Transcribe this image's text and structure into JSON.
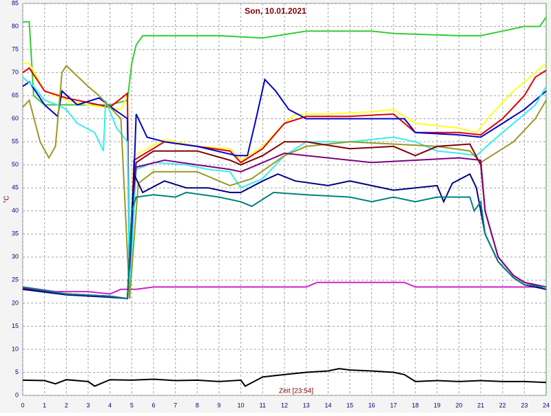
{
  "chart_data": {
    "type": "line",
    "title": "Son, 10.01.2021",
    "x_label": "Zeit [23:54]",
    "y_label": "°C",
    "xlim": [
      0,
      24
    ],
    "xticks": [
      0,
      1,
      2,
      3,
      4,
      5,
      6,
      7,
      8,
      9,
      10,
      11,
      12,
      13,
      14,
      15,
      16,
      17,
      18,
      19,
      20,
      21,
      22,
      23,
      24
    ],
    "ylim": [
      0,
      85
    ],
    "yticks": [
      0,
      5,
      10,
      15,
      20,
      25,
      30,
      35,
      40,
      45,
      50,
      55,
      60,
      65,
      70,
      75,
      80,
      85
    ],
    "grid": true,
    "series": [
      {
        "color": "#33cc33",
        "x": [
          0,
          0.3,
          0.5,
          1,
          2,
          3,
          4,
          4.8,
          5,
          5.2,
          5.5,
          9,
          11,
          13,
          16,
          17,
          20,
          21,
          22,
          23,
          23.7,
          24
        ],
        "values": [
          81,
          81,
          65,
          63,
          63,
          63,
          63,
          64,
          72,
          76,
          78,
          78,
          77.5,
          79,
          79,
          78.5,
          78,
          78,
          79,
          80,
          80,
          82
        ]
      },
      {
        "color": "#cc22cc",
        "x": [
          0,
          1.5,
          3,
          4,
          4.5,
          5.2,
          6,
          13,
          13.5,
          17.5,
          18,
          24
        ],
        "values": [
          23.5,
          22.5,
          22.5,
          22,
          23,
          23,
          23.5,
          23.5,
          24.5,
          24.5,
          23.5,
          23.5
        ]
      },
      {
        "color": "#000000",
        "x": [
          0,
          1,
          1.5,
          2,
          3,
          3.3,
          4,
          5,
          6,
          7,
          8,
          9,
          10,
          10.2,
          11,
          12,
          13,
          14,
          14.5,
          15,
          16,
          17,
          17.5,
          18,
          19,
          20,
          21,
          22,
          23,
          24
        ],
        "values": [
          3.3,
          3.2,
          2.5,
          3.4,
          3,
          2,
          3.4,
          3.3,
          3.5,
          3.2,
          3.3,
          3,
          3.3,
          2,
          4,
          4.5,
          5,
          5.3,
          5.8,
          5.5,
          5.3,
          5,
          4.5,
          3,
          3.2,
          3,
          3.2,
          3,
          3,
          2.8
        ]
      },
      {
        "color": "#ffff22",
        "x": [
          0,
          0.3,
          1,
          2,
          3,
          4.5,
          4.8,
          4.9,
          5.1,
          6.5,
          8,
          9.5,
          10,
          11,
          12,
          12.5,
          14,
          16,
          17,
          18,
          19,
          20,
          20.8,
          21.5,
          22.5,
          23.5,
          24
        ],
        "values": [
          72,
          72,
          66,
          64,
          63,
          62,
          65,
          22,
          52,
          55.5,
          54,
          53.5,
          51,
          54,
          59,
          61,
          61,
          61.5,
          62,
          59,
          58.5,
          58,
          57,
          61,
          66,
          70,
          72
        ]
      },
      {
        "color": "#dd0000",
        "x": [
          0,
          0.3,
          1,
          2,
          3,
          4,
          4.8,
          4.9,
          5.1,
          6.5,
          8,
          9.5,
          10,
          11,
          12,
          13,
          15,
          17,
          18,
          19,
          20,
          21,
          22,
          23,
          23.5,
          24
        ],
        "values": [
          70,
          71,
          66,
          64.5,
          63.5,
          62.5,
          65.5,
          22,
          51,
          55,
          54,
          53,
          50.5,
          53.5,
          59,
          60.5,
          60.5,
          61,
          57,
          57,
          57,
          56.5,
          60,
          65,
          69,
          70.5
        ]
      },
      {
        "color": "#0000cc",
        "x": [
          0,
          0.3,
          1,
          1.6,
          1.8,
          2.5,
          3.5,
          4.2,
          4.8,
          4.9,
          5.2,
          5.7,
          6.5,
          8,
          9.8,
          10.3,
          10.7,
          11.1,
          11.6,
          12.2,
          13,
          15,
          17.5,
          18,
          20,
          21,
          22,
          23,
          24
        ],
        "values": [
          67,
          68,
          63,
          60.5,
          66,
          63,
          64.5,
          62,
          60,
          21,
          61,
          56,
          55,
          54,
          52,
          52,
          60,
          68.5,
          66,
          62,
          60,
          60,
          60,
          57,
          56.5,
          56,
          59,
          62,
          66
        ]
      },
      {
        "color": "#33eeee",
        "x": [
          0,
          0.5,
          1,
          1.6,
          2,
          2.5,
          3.3,
          3.7,
          3.8,
          4.3,
          4.8,
          4.9,
          5.2,
          6,
          7.5,
          8.5,
          9.5,
          10,
          11,
          12,
          13,
          15,
          17,
          18,
          19,
          20,
          20.8,
          21.5,
          22.5,
          23.5,
          24
        ],
        "values": [
          69,
          67,
          64,
          63,
          62,
          59,
          57,
          53,
          64,
          58,
          55,
          22,
          49,
          50.5,
          50,
          49,
          48.5,
          45,
          47,
          52,
          55,
          55,
          56,
          55,
          53,
          52.5,
          52,
          55,
          59,
          63,
          67
        ]
      },
      {
        "color": "#999922",
        "x": [
          0,
          0.3,
          0.8,
          1.2,
          1.5,
          1.8,
          2,
          3,
          3.5,
          4.5,
          4.9,
          5.3,
          6,
          8,
          9.5,
          10.5,
          12,
          13,
          15,
          17,
          19,
          20.5,
          21,
          21.5,
          22.5,
          23.5,
          24
        ],
        "values": [
          62.5,
          64,
          55,
          51.5,
          54,
          70,
          71.5,
          67,
          65,
          60,
          21,
          46,
          48.5,
          48.5,
          45.5,
          47,
          52,
          54,
          55,
          54.5,
          54,
          53,
          50.5,
          52,
          55,
          60,
          64
        ]
      },
      {
        "color": "#800000",
        "x": [
          0,
          2,
          4,
          4.8,
          5,
          5.2,
          6,
          8,
          9.5,
          10,
          11,
          12,
          13,
          15,
          17,
          18,
          19,
          20.5,
          21,
          21.2,
          21.8,
          22.5,
          23,
          24
        ],
        "values": [
          23,
          22,
          21.5,
          21,
          40,
          50.5,
          53,
          53,
          51,
          50,
          52,
          55,
          55,
          53.5,
          54,
          52,
          54,
          54.5,
          50,
          40,
          30,
          26,
          24.5,
          23.5
        ]
      },
      {
        "color": "#800080",
        "x": [
          0,
          2,
          4,
          4.8,
          5,
          5.2,
          6.5,
          8,
          9.5,
          10,
          11,
          12,
          14,
          16,
          18,
          20,
          21,
          21.2,
          21.8,
          22.5,
          23,
          24
        ],
        "values": [
          23.2,
          22,
          21.5,
          21,
          40,
          49.5,
          51,
          50,
          49,
          48.5,
          50.5,
          52.5,
          51.5,
          50.5,
          51,
          51.5,
          51,
          40,
          30,
          26,
          24.5,
          23.5
        ]
      },
      {
        "color": "#000080",
        "x": [
          0,
          2,
          4,
          4.8,
          5.1,
          5.5,
          6.5,
          7.5,
          8.5,
          9.5,
          10,
          11,
          11.7,
          12.5,
          14,
          15,
          17,
          19,
          19.3,
          19.7,
          20.5,
          20.8,
          21,
          21.2,
          21.8,
          22.5,
          23,
          24
        ],
        "values": [
          23,
          21.8,
          21.3,
          21,
          48,
          44,
          46.5,
          45,
          45,
          44,
          44,
          46.5,
          48,
          46.5,
          45.5,
          46.5,
          44.5,
          45.5,
          42,
          46,
          48,
          45,
          40,
          35,
          29,
          25.5,
          24,
          23
        ]
      },
      {
        "color": "#008080",
        "x": [
          0,
          2,
          4,
          4.8,
          5,
          5.2,
          6,
          7,
          7.5,
          9,
          10,
          10.5,
          11.5,
          13,
          15,
          16,
          17,
          18,
          19,
          20.5,
          20.7,
          21,
          21.2,
          21.8,
          22.5,
          23,
          24
        ],
        "values": [
          23.5,
          22,
          21.5,
          21,
          40,
          43,
          43.5,
          43,
          44,
          43,
          42,
          41,
          44,
          43.5,
          43,
          42,
          43,
          42,
          43,
          43,
          40,
          42,
          35,
          29,
          25.5,
          24,
          23.5
        ]
      }
    ]
  }
}
